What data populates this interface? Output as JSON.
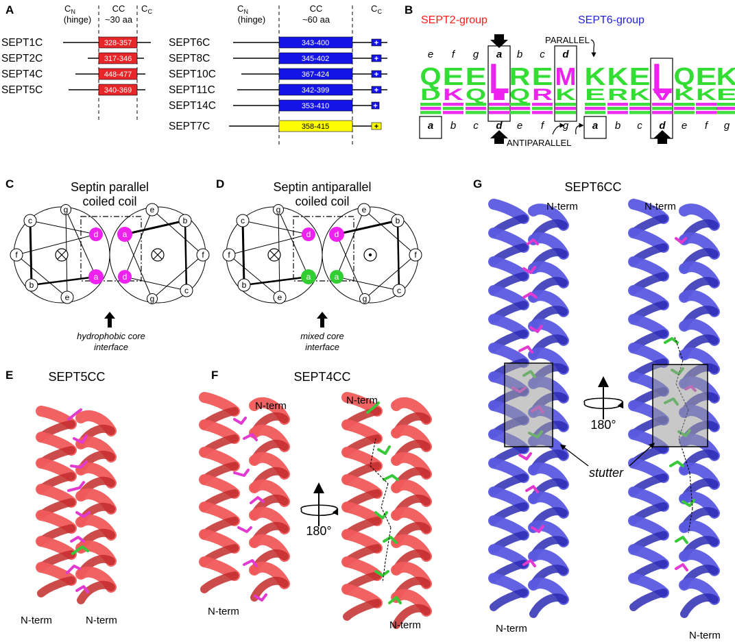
{
  "panels": {
    "A": "A",
    "B": "B",
    "C": "C",
    "D": "D",
    "E": "E",
    "F": "F",
    "G": "G"
  },
  "panel_a": {
    "left_header": {
      "cn": "C",
      "cn_sub": "N",
      "cn_note": "(hinge)",
      "cc": "CC",
      "cc_note": "~30 aa",
      "cc2": "C",
      "cc2_sub": "C"
    },
    "right_header": {
      "cn": "C",
      "cn_sub": "N",
      "cn_note": "(hinge)",
      "cc": "CC",
      "cc_note": "~60 aa",
      "cc2": "C",
      "cc2_sub": "C"
    },
    "left_rows": [
      {
        "name": "SEPT1C",
        "range": "328-357"
      },
      {
        "name": "SEPT2C",
        "range": "317-346"
      },
      {
        "name": "SEPT4C",
        "range": "448-477"
      },
      {
        "name": "SEPT5C",
        "range": "340-369"
      }
    ],
    "right_rows": [
      {
        "name": "SEPT6C",
        "range": "343-400"
      },
      {
        "name": "SEPT8C",
        "range": "345-402"
      },
      {
        "name": "SEPT10C",
        "range": "367-424"
      },
      {
        "name": "SEPT11C",
        "range": "342-399"
      },
      {
        "name": "SEPT14C",
        "range": "353-410"
      },
      {
        "name": "SEPT7C",
        "range": "358-415"
      }
    ],
    "plus": "+",
    "colors": {
      "red": "#e8262a",
      "blue": "#1414e6",
      "yellow": "#ffff00"
    }
  },
  "panel_b": {
    "group1": "SEPT2-group",
    "group2": "SEPT6-group",
    "parallel": "PARALLEL",
    "antiparallel": "ANTIPARALLEL",
    "top_heptad_1": [
      "e",
      "f",
      "g",
      "a",
      "b",
      "c",
      "d"
    ],
    "bottom_heptad_1": [
      "a",
      "b",
      "c",
      "d",
      "e",
      "f",
      "g"
    ],
    "top_heptad_2": [],
    "bottom_heptad_2": [
      "a",
      "b",
      "c",
      "d",
      "e",
      "f",
      "g"
    ],
    "logo1_top": [
      "Q",
      "E",
      "E",
      "L",
      "R",
      "E",
      "M"
    ],
    "logo2_top": [
      "K",
      "K",
      "E",
      "L",
      "Q",
      "E",
      "K"
    ],
    "colors": {
      "green": "#33dd33",
      "magenta": "#ee22ee",
      "red": "#ff1a1a",
      "blue": "#2222dd"
    }
  },
  "panel_c": {
    "title_line1": "Septin parallel",
    "title_line2": "coiled coil",
    "caption_line1": "hydrophobic core",
    "caption_line2": "interface",
    "left_wheel": [
      "c",
      "g",
      "d",
      "a",
      "b",
      "e",
      "f"
    ],
    "right_wheel": [
      "a",
      "e",
      "b",
      "f",
      "c",
      "g",
      "d"
    ]
  },
  "panel_d": {
    "title_line1": "Septin antiparallel",
    "title_line2": "coiled coil",
    "caption_line1": "mixed core",
    "caption_line2": "interface",
    "left_wheel": [
      "c",
      "g",
      "d",
      "a",
      "b",
      "e",
      "f"
    ],
    "right_wheel": [
      "d",
      "e",
      "b",
      "f",
      "c",
      "g",
      "a"
    ]
  },
  "panel_e": {
    "title": "SEPT5CC",
    "nterm_left": "N-term",
    "nterm_right": "N-term"
  },
  "panel_f": {
    "title": "SEPT4CC",
    "nterm_top_left": "N-term",
    "nterm_top_right": "N-term",
    "nterm_bottom_left": "N-term",
    "nterm_bottom_right": "N-term",
    "rotation": "180°"
  },
  "panel_g": {
    "title": "SEPT6CC",
    "nterm_top_left": "N-term",
    "nterm_top_right": "N-term",
    "nterm_bottom_left": "N-term",
    "nterm_bottom_right": "N-term",
    "rotation": "180°",
    "stutter": "stutter"
  },
  "colors": {
    "helix_red": "#f05a5a",
    "helix_blue": "#5a5ae0",
    "stick_magenta": "#e23ad0",
    "stick_green": "#39c83a"
  }
}
